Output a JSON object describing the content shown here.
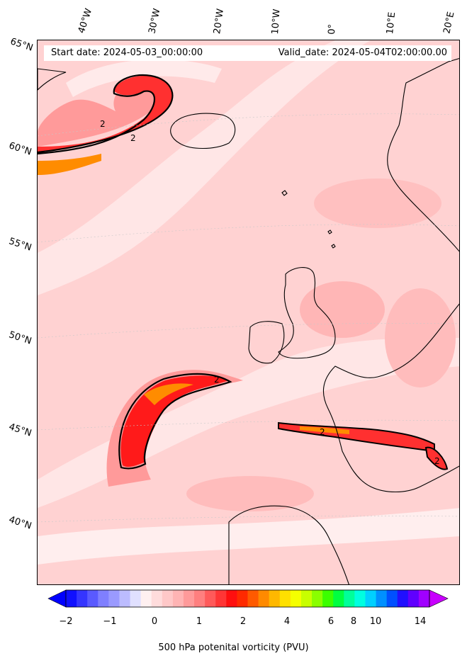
{
  "header": {
    "start_date": "Start date: 2024-05-03_00:00:00",
    "valid_date": "Valid_date: 2024-05-04T02:00:00.00"
  },
  "longitude_labels": [
    "40°W",
    "30°W",
    "20°W",
    "10°W",
    "0°",
    "10°E",
    "20°E"
  ],
  "latitude_labels": [
    "65°N",
    "60°N",
    "55°N",
    "50°N",
    "45°N",
    "40°N"
  ],
  "contour_labels": [
    "2",
    "2",
    "2",
    "2",
    "2"
  ],
  "colorbar": {
    "title": "500 hPa potenital vorticity (PVU)",
    "ticks": [
      "−2",
      "−1",
      "0",
      "1",
      "2",
      "4",
      "6",
      "8",
      "10",
      "14"
    ],
    "colors": [
      "#1010ff",
      "#3535ff",
      "#5a5aff",
      "#7f7fff",
      "#9a9aff",
      "#bcbcff",
      "#e0e0ff",
      "#fff0f0",
      "#ffdcdc",
      "#ffc8c8",
      "#ffb4b4",
      "#ff9a9a",
      "#ff7f7f",
      "#ff5a5a",
      "#ff3535",
      "#ff0f0f",
      "#ff2a00",
      "#ff5a00",
      "#ff8a00",
      "#ffb800",
      "#ffe000",
      "#f5ff00",
      "#c8ff00",
      "#8aff00",
      "#3cff00",
      "#00ff40",
      "#00ff9a",
      "#00ffe0",
      "#00d0ff",
      "#0090ff",
      "#0050ff",
      "#2010ff",
      "#6000ff",
      "#a000ff"
    ],
    "min_color": "#0000ff",
    "max_color": "#c800ff"
  }
}
